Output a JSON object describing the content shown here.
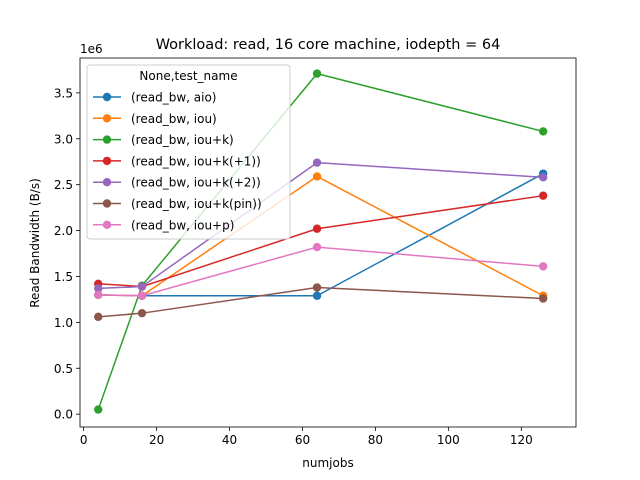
{
  "chart_data": {
    "type": "line",
    "title": "Workload: read, 16 core machine, iodepth = 64",
    "xlabel": "numjobs",
    "ylabel": "Read Bandwidth (B/s)",
    "y_offset_label": "1e6",
    "xlim": [
      -1,
      135
    ],
    "ylim": [
      -0.14,
      3.88
    ],
    "x_scale_note": "y values in units of 1e6 B/s",
    "xticks": [
      0,
      20,
      40,
      60,
      80,
      100,
      120
    ],
    "xtick_labels": [
      "0",
      "20",
      "40",
      "60",
      "80",
      "100",
      "120"
    ],
    "yticks": [
      0.0,
      0.5,
      1.0,
      1.5,
      2.0,
      2.5,
      3.0,
      3.5
    ],
    "ytick_labels": [
      "0.0",
      "0.5",
      "1.0",
      "1.5",
      "2.0",
      "2.5",
      "3.0",
      "3.5"
    ],
    "grid": false,
    "legend": {
      "title": "None,test_name",
      "placement": "upper-left"
    },
    "x": [
      4,
      16,
      64,
      126
    ],
    "series": [
      {
        "name": "(read_bw, aio)",
        "color": "#1f77b4",
        "values": [
          1.3,
          1.29,
          1.29,
          2.62
        ]
      },
      {
        "name": "(read_bw, iou)",
        "color": "#ff7f0e",
        "values": [
          1.3,
          1.29,
          2.59,
          1.29
        ]
      },
      {
        "name": "(read_bw, iou+k)",
        "color": "#2ca02c",
        "values": [
          0.05,
          1.4,
          3.71,
          3.08
        ]
      },
      {
        "name": "(read_bw, iou+k(+1))",
        "color": "#d62728",
        "values": [
          1.42,
          1.39,
          2.02,
          2.38
        ]
      },
      {
        "name": "(read_bw, iou+k(+2))",
        "color": "#9467bd",
        "values": [
          1.37,
          1.39,
          2.74,
          2.58
        ]
      },
      {
        "name": "(read_bw, iou+k(pin))",
        "color": "#8c564b",
        "values": [
          1.06,
          1.1,
          1.38,
          1.26
        ]
      },
      {
        "name": "(read_bw, iou+p)",
        "color": "#e377c2",
        "values": [
          1.3,
          1.29,
          1.82,
          1.61
        ]
      }
    ]
  }
}
